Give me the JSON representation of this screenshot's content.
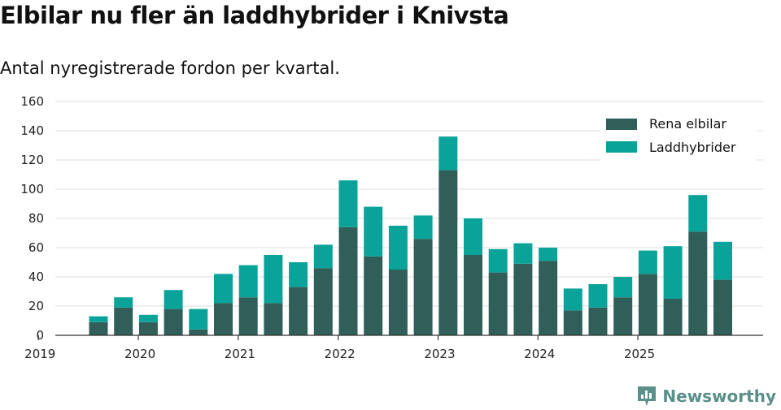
{
  "header": {
    "title": "Elbilar nu fler än laddhybrider i Knivsta",
    "subtitle": "Antal nyregistrerade fordon per kvartal."
  },
  "brand": {
    "name": "Newsworthy",
    "icon": "bar-chart-logo-icon"
  },
  "colors": {
    "series1": "#2f5f58",
    "series2": "#0aa39a",
    "grid": "#dcdcdc",
    "axis": "#333333"
  },
  "chart_data": {
    "type": "bar",
    "stacked": true,
    "title": "Elbilar nu fler än laddhybrider i Knivsta",
    "subtitle": "Antal nyregistrerade fordon per kvartal.",
    "xlabel": "",
    "ylabel": "",
    "ylim": [
      0,
      160
    ],
    "yticks": [
      0,
      20,
      40,
      60,
      80,
      100,
      120,
      140,
      160
    ],
    "xticks": [
      "2019",
      "2020",
      "2021",
      "2022",
      "2023",
      "2024",
      "2025"
    ],
    "categories": [
      "2019 Q2",
      "2019 Q3",
      "2019 Q4",
      "2020 Q1",
      "2020 Q2",
      "2020 Q3",
      "2020 Q4",
      "2021 Q1",
      "2021 Q2",
      "2021 Q3",
      "2021 Q4",
      "2022 Q1",
      "2022 Q2",
      "2022 Q3",
      "2022 Q4",
      "2023 Q1",
      "2023 Q2",
      "2023 Q3",
      "2023 Q4",
      "2024 Q1",
      "2024 Q2",
      "2024 Q3",
      "2024 Q4",
      "2025 Q1",
      "2025 Q2",
      "2025 Q3"
    ],
    "series": [
      {
        "name": "Rena elbilar",
        "values": [
          9,
          19,
          9,
          18,
          4,
          22,
          26,
          22,
          33,
          46,
          74,
          54,
          45,
          66,
          113,
          55,
          43,
          49,
          51,
          17,
          19,
          26,
          42,
          25,
          71,
          38
        ]
      },
      {
        "name": "Laddhybrider",
        "values": [
          4,
          7,
          5,
          13,
          14,
          20,
          22,
          33,
          17,
          16,
          32,
          34,
          30,
          16,
          23,
          25,
          16,
          14,
          9,
          15,
          16,
          14,
          16,
          36,
          25,
          26
        ]
      }
    ],
    "legend_position": "top-right",
    "grid": true
  }
}
